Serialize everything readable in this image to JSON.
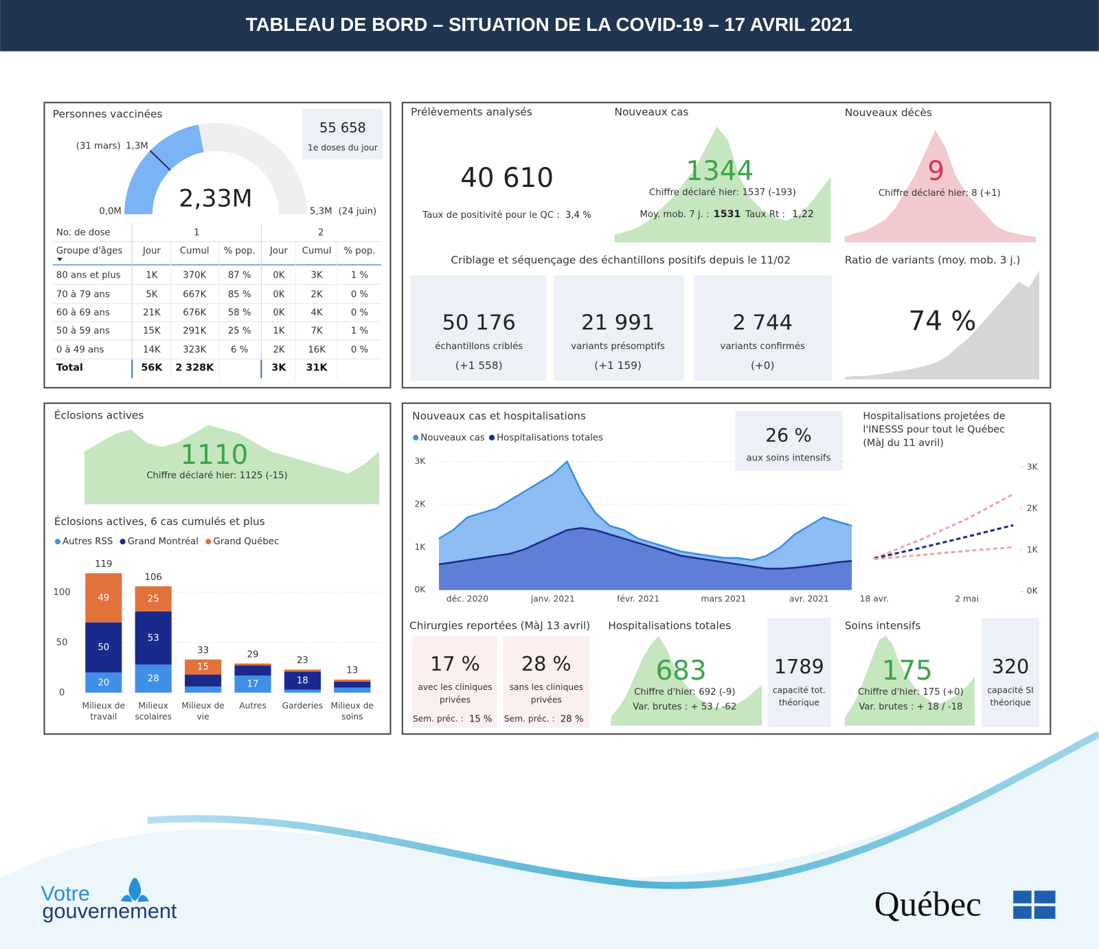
{
  "header": {
    "title": "TABLEAU DE BORD – SITUATION DE LA COVID-19 – 17 AVRIL 2021"
  },
  "vaccination": {
    "title": "Personnes vaccinées",
    "daily": {
      "value": "55 658",
      "label": "1e doses du jour"
    },
    "table": {
      "dose_header": "No. de dose",
      "doses": [
        "1",
        "2"
      ],
      "columns": [
        "Groupe d'âges",
        "Jour",
        "Cumul",
        "% pop.",
        "Jour",
        "Cumul",
        "% pop."
      ],
      "rows": [
        [
          "80 ans et plus",
          "1K",
          "370K",
          "87 %",
          "0K",
          "3K",
          "1 %"
        ],
        [
          "70 à 79 ans",
          "5K",
          "667K",
          "85 %",
          "0K",
          "2K",
          "0 %"
        ],
        [
          "60 à 69 ans",
          "21K",
          "676K",
          "58 %",
          "0K",
          "4K",
          "0 %"
        ],
        [
          "50 à 59 ans",
          "15K",
          "291K",
          "25 %",
          "1K",
          "7K",
          "1 %"
        ],
        [
          "0 à 49 ans",
          "14K",
          "323K",
          "6 %",
          "2K",
          "16K",
          "0 %"
        ]
      ],
      "total": [
        "Total",
        "56K",
        "2 328K",
        null,
        "3K",
        "31K",
        null
      ]
    }
  },
  "tests": {
    "title": "Prélèvements analysés",
    "value": "40 610",
    "positivity_label": "Taux de positivité pour le QC :",
    "positivity": "3,4 %"
  },
  "cases": {
    "title": "Nouveaux cas",
    "value": "1344",
    "yesterday": "Chiffre déclaré hier: 1537 (-193)",
    "avg_label": "Moy. mob. 7 j. :",
    "avg": "1531",
    "rt_label": "Taux Rt :",
    "rt": "1,22"
  },
  "deaths": {
    "title": "Nouveaux décès",
    "value": "9",
    "yesterday": "Chiffre déclaré hier: 8 (+1)"
  },
  "screening": {
    "title": "Criblage et séquençage des échantillons positifs depuis le 11/02",
    "cards": [
      {
        "value": "50 176",
        "label": "échantillons criblés",
        "change": "(+1 558)"
      },
      {
        "value": "21 991",
        "label": "variants présomptifs",
        "change": "(+1 159)"
      },
      {
        "value": "2 744",
        "label": "variants confirmés",
        "change": "(+0)"
      }
    ]
  },
  "variants": {
    "title": "Ratio de variants (moy. mob. 3 j.)",
    "value": "74 %"
  },
  "outbreaks": {
    "title": "Éclosions actives",
    "value": "1110",
    "yesterday": "Chiffre déclaré hier: 1125 (-15)"
  },
  "icu_share": {
    "value": "26 %",
    "label": "aux soins intensifs"
  },
  "surgery": {
    "title": "Chirurgies reportées (MàJ 13 avril)",
    "cards": [
      {
        "value": "17 %",
        "label": [
          "avec les cliniques",
          "privées"
        ],
        "prev_label": "Sem. préc. :",
        "prev": "15 %"
      },
      {
        "value": "28 %",
        "label": [
          "sans les cliniques",
          "privées"
        ],
        "prev_label": "Sem. préc. :",
        "prev": "28 %"
      }
    ]
  },
  "hospitalizations": {
    "title": "Hospitalisations totales",
    "value": "683",
    "yesterday": "Chiffre d'hier: 692 (-9)",
    "changes": "Var. brutes : + 53  /  -62",
    "capacity": "1789",
    "capacity_label": [
      "capacité tot.",
      "théorique"
    ]
  },
  "icu": {
    "title": "Soins intensifs",
    "value": "175",
    "yesterday": "Chiffre d'hier: 175 (+0)",
    "changes": "Var. brutes : + 18  /  -18",
    "capacity": "320",
    "capacity_label": [
      "capacité SI",
      "théorique"
    ]
  },
  "footer": {
    "left": [
      "Votre",
      "gouvernement"
    ],
    "right": "Québec"
  },
  "chart_data": [
    {
      "type": "gauge",
      "value": 2.33,
      "value_label": "2,33M",
      "min": {
        "value": 0,
        "label": "0,0M"
      },
      "max": {
        "value": 5.3,
        "label": "5,3M"
      },
      "max_date": "(24 juin)",
      "marker": {
        "value": 1.3,
        "label": "1,3M"
      },
      "marker_date": "(31 mars)",
      "color": "#7ab4f5"
    },
    {
      "type": "sparkline",
      "color": "#c6e6c0",
      "values": [
        10,
        15,
        20,
        30,
        45,
        60,
        80,
        100,
        130,
        160,
        140,
        90,
        60,
        45,
        35,
        30,
        35,
        50,
        70,
        90
      ]
    },
    {
      "type": "sparkline",
      "color": "#f2c9cf",
      "values": [
        5,
        8,
        10,
        15,
        20,
        30,
        45,
        60,
        80,
        100,
        85,
        60,
        45,
        35,
        25,
        15,
        10,
        8,
        6,
        5
      ]
    },
    {
      "type": "sparkline",
      "color": "#d6d6d6",
      "values": [
        2,
        3,
        3,
        4,
        5,
        7,
        8,
        10,
        12,
        15,
        20,
        28,
        35,
        45,
        55,
        65,
        75,
        85,
        80,
        95
      ]
    },
    {
      "type": "sparkline",
      "color": "#c6e6c0",
      "values": [
        60,
        70,
        80,
        85,
        70,
        65,
        70,
        80,
        90,
        85,
        80,
        70,
        60,
        55,
        50,
        45,
        40,
        35,
        45,
        60
      ]
    },
    {
      "type": "stacked_bar",
      "title": "Éclosions actives, 6 cas cumulés et plus",
      "categories": [
        [
          "Milieux de",
          "travail"
        ],
        [
          "Milieux",
          "scolaires"
        ],
        [
          "Milieux de",
          "vie"
        ],
        [
          "Autres"
        ],
        [
          "Garderies"
        ],
        [
          "Milieux de",
          "soins"
        ]
      ],
      "series": [
        {
          "name": "Autres RSS",
          "color": "#3f8fe8",
          "values": [
            20,
            28,
            6,
            17,
            3,
            5
          ],
          "value_labels": [
            "20",
            "28",
            null,
            "17",
            null,
            null
          ]
        },
        {
          "name": "Grand Montréal",
          "color": "#1a2a8c",
          "values": [
            50,
            53,
            12,
            10,
            18,
            6
          ],
          "value_labels": [
            "50",
            "53",
            null,
            null,
            "18",
            null
          ]
        },
        {
          "name": "Grand Québec",
          "color": "#e2723b",
          "values": [
            49,
            25,
            15,
            2,
            2,
            2
          ],
          "value_labels": [
            "49",
            "25",
            "15",
            null,
            null,
            null
          ]
        }
      ],
      "totals": [
        119,
        106,
        33,
        29,
        23,
        13
      ],
      "ylim": [
        0,
        125
      ],
      "yticks": [
        0,
        50,
        100
      ],
      "grid": true
    },
    {
      "type": "area",
      "title": "Nouveaux cas et hospitalisations",
      "categories": [
        null,
        null,
        "déc. 2020",
        null,
        null,
        null,
        null,
        null,
        "janv. 2021",
        null,
        null,
        null,
        null,
        null,
        "févr. 2021",
        null,
        null,
        null,
        null,
        null,
        "mars 2021",
        null,
        null,
        null,
        null,
        null,
        "avr. 2021",
        null,
        null,
        null
      ],
      "series": [
        {
          "name": "Nouveaux cas",
          "color": "#3d8ee6",
          "fill": "#8dbdf3",
          "values": [
            1200,
            1400,
            1700,
            1800,
            1900,
            2100,
            2300,
            2500,
            2700,
            3000,
            2300,
            1800,
            1500,
            1400,
            1200,
            1100,
            1000,
            900,
            850,
            800,
            750,
            750,
            700,
            800,
            1000,
            1300,
            1500,
            1700,
            1600,
            1500
          ]
        },
        {
          "name": "Hospitalisations totales",
          "color": "#1b2a8a",
          "fill": "#5f7fd6",
          "values": [
            600,
            650,
            700,
            750,
            800,
            850,
            950,
            1100,
            1250,
            1400,
            1450,
            1400,
            1300,
            1200,
            1100,
            1000,
            900,
            800,
            750,
            700,
            650,
            600,
            550,
            500,
            500,
            520,
            560,
            600,
            650,
            680
          ]
        }
      ],
      "ylim": [
        0,
        3100
      ],
      "yticks": [
        {
          "value": 0,
          "label": "0K"
        },
        {
          "value": 1000,
          "label": "1K"
        },
        {
          "value": 2000,
          "label": "2K"
        },
        {
          "value": 3000,
          "label": "3K"
        }
      ],
      "grid": true
    },
    {
      "type": "line",
      "title": [
        "Hospitalisations projetées de",
        "l'INESSS pour tout le Québec",
        "(MàJ du 11 avril)"
      ],
      "categories": [
        "18 avr.",
        null,
        "2 mai",
        null
      ],
      "series": [
        {
          "color": "#eba5b4",
          "values": [
            800,
            1250,
            1750,
            2350
          ]
        },
        {
          "color": "#1b2a8a",
          "values": [
            800,
            1050,
            1320,
            1600
          ]
        },
        {
          "color": "#eba5b4",
          "values": [
            780,
            880,
            980,
            1070
          ]
        }
      ],
      "ylim": [
        0,
        3000
      ],
      "yticks": [
        {
          "value": 0,
          "label": "0K"
        },
        {
          "value": 1000,
          "label": "1K"
        },
        {
          "value": 2000,
          "label": "2K"
        },
        {
          "value": 3000,
          "label": "3K"
        }
      ]
    },
    {
      "type": "sparkline",
      "color": "#c6e6c0",
      "values": [
        10,
        20,
        35,
        55,
        75,
        90,
        100,
        85,
        65,
        50,
        40,
        30,
        25,
        20,
        20,
        22,
        25,
        30,
        38,
        45
      ]
    },
    {
      "type": "sparkline",
      "color": "#c6e6c0",
      "values": [
        10,
        20,
        35,
        55,
        75,
        95,
        100,
        90,
        70,
        55,
        45,
        35,
        30,
        25,
        25,
        28,
        32,
        38,
        45,
        55
      ]
    }
  ]
}
